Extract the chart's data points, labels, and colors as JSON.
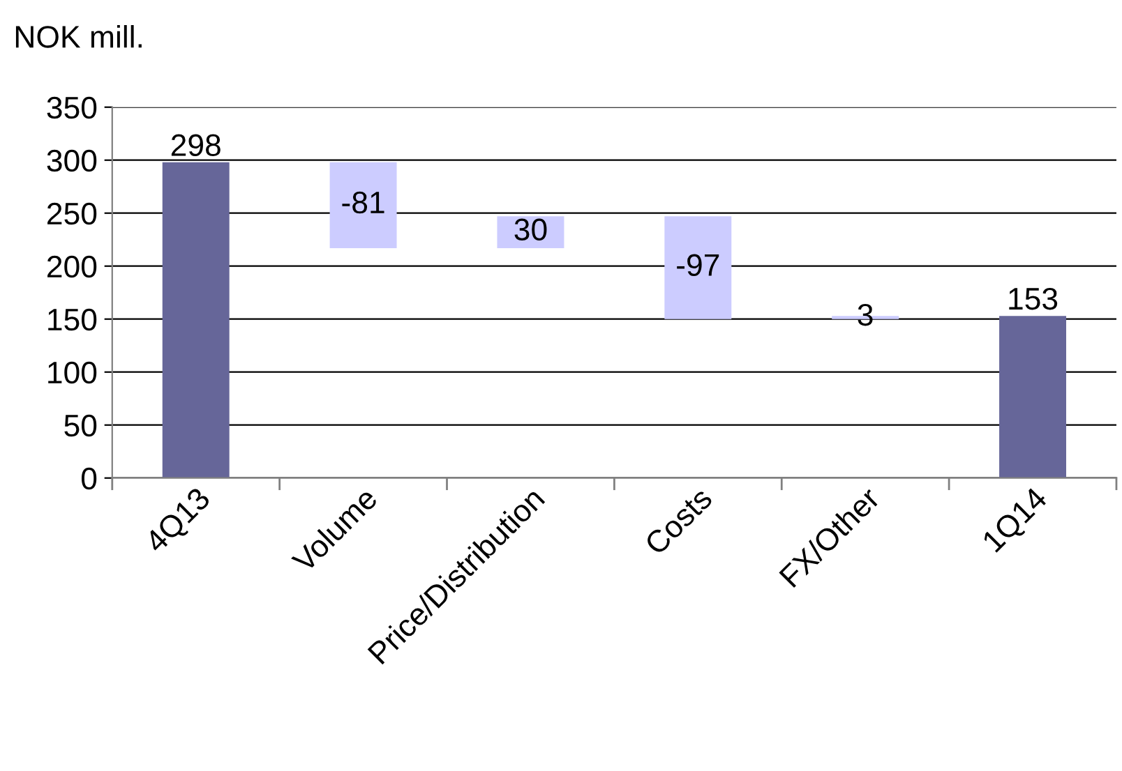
{
  "chart_data": {
    "type": "bar",
    "ylabel": "NOK mill.",
    "categories": [
      "4Q13",
      "Volume",
      "Price/Distribution",
      "Costs",
      "FX/Other",
      "1Q14"
    ],
    "values": [
      298,
      -81,
      30,
      -97,
      3,
      153
    ],
    "base": [
      0,
      298,
      217,
      247,
      150,
      0
    ],
    "colors": [
      "#666699",
      "#ccccff",
      "#ccccff",
      "#ccccff",
      "#ccccff",
      "#666699"
    ],
    "ylim": [
      0,
      350
    ],
    "yticks": [
      0,
      50,
      100,
      150,
      200,
      250,
      300,
      350
    ],
    "grid": "y",
    "data_labels": true
  }
}
